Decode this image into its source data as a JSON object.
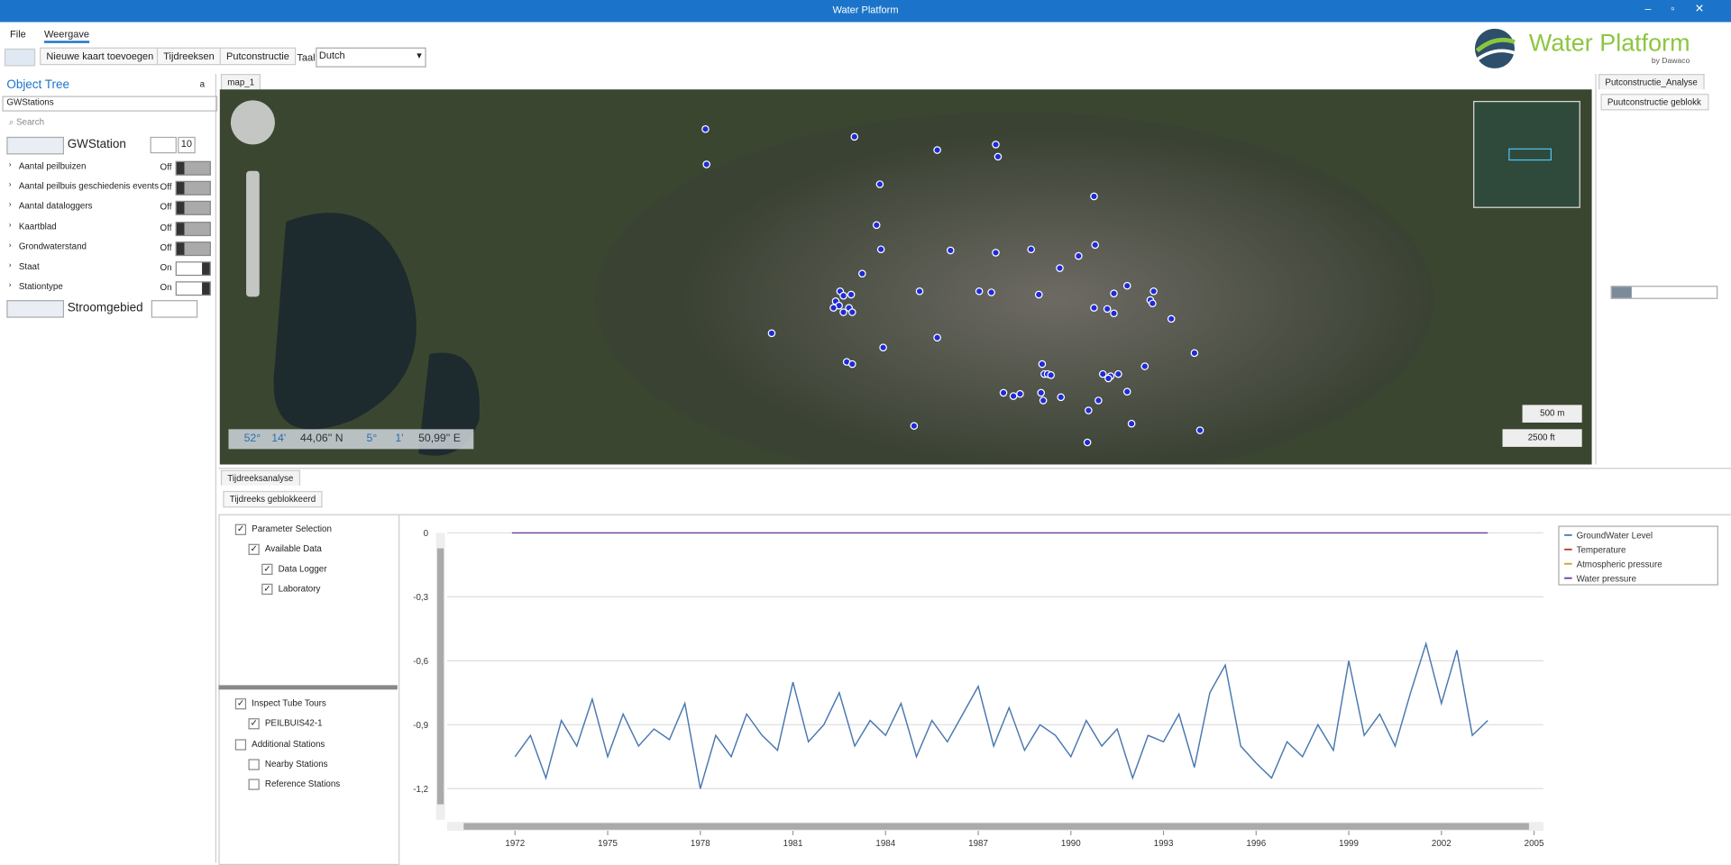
{
  "window": {
    "title": "Water Platform"
  },
  "menu": [
    "File",
    "Weergave"
  ],
  "toolbar": {
    "buttons": [
      "Nieuwe kaart toevoegen",
      "Tijdreeksen",
      "Putconstructie"
    ],
    "language_label": "Taal",
    "language": "Dutch"
  },
  "logo": {
    "title": "Water Platform",
    "subtitle": "by Dawaco"
  },
  "object_tree": {
    "title": "Object Tree",
    "pin": "a",
    "source": "GWStations",
    "search": "Search",
    "group": "GWStation",
    "count": "10",
    "layers": [
      {
        "name": "Aantal peilbuizen",
        "state": "Off"
      },
      {
        "name": "Aantal peilbuis geschiedenis events",
        "state": "Off"
      },
      {
        "name": "Aantal dataloggers",
        "state": "Off"
      },
      {
        "name": "Kaartblad",
        "state": "Off"
      },
      {
        "name": "Grondwaterstand",
        "state": "Off"
      },
      {
        "name": "Staat",
        "state": "On"
      },
      {
        "name": "Stationtype",
        "state": "On"
      }
    ],
    "group2": "Stroomgebied"
  },
  "map": {
    "tab": "map_1",
    "coordinates": [
      "52°",
      "14'",
      "44,06'' N",
      "5°",
      "1'",
      "50,99'' E"
    ],
    "scales": [
      "500 m",
      "2500 ft"
    ]
  },
  "side_panel": {
    "tab": "Putconstructie_Analyse",
    "button": "Puutconstructie geblokk"
  },
  "analysis": {
    "tab": "Tijdreeksanalyse",
    "button": "Tijdreeks geblokkeerd",
    "tree": [
      "Parameter Selection",
      "Available Data",
      "Data Logger",
      "Laboratory"
    ],
    "stations": [
      "Inspect Tube Tours",
      "PEILBUIS42-1",
      "Additional Stations",
      "Nearby Stations",
      "Reference Stations"
    ]
  },
  "chart_data": {
    "type": "line",
    "series": [
      {
        "name": "GroundWater Level",
        "color": "#4a78b0",
        "x": [
          1972,
          1972.5,
          1973,
          1973.5,
          1974,
          1974.5,
          1975,
          1975.5,
          1976,
          1976.5,
          1977,
          1977.5,
          1978,
          1978.5,
          1979,
          1979.5,
          1980,
          1980.5,
          1981,
          1981.5,
          1982,
          1982.5,
          1983,
          1983.5,
          1984,
          1984.5,
          1985,
          1985.5,
          1986,
          1986.5,
          1987,
          1987.5,
          1988,
          1988.5,
          1989,
          1989.5,
          1990,
          1990.5,
          1991,
          1991.5,
          1992,
          1992.5,
          1993,
          1993.5,
          1994,
          1994.5,
          1995,
          1995.5,
          1996,
          1996.5,
          1997,
          1997.5,
          1998,
          1998.5,
          1999,
          1999.5,
          2000,
          2000.5,
          2001,
          2001.5,
          2002,
          2002.5,
          2003,
          2003.5
        ],
        "values": [
          -1.05,
          -0.95,
          -1.15,
          -0.88,
          -1.0,
          -0.78,
          -1.05,
          -0.85,
          -1.0,
          -0.92,
          -0.97,
          -0.8,
          -1.2,
          -0.95,
          -1.05,
          -0.85,
          -0.95,
          -1.02,
          -0.7,
          -0.98,
          -0.9,
          -0.75,
          -1.0,
          -0.88,
          -0.95,
          -0.8,
          -1.05,
          -0.88,
          -0.98,
          -0.85,
          -0.72,
          -1.0,
          -0.82,
          -1.02,
          -0.9,
          -0.95,
          -1.05,
          -0.88,
          -1.0,
          -0.92,
          -1.15,
          -0.95,
          -0.98,
          -0.85,
          -1.1,
          -0.75,
          -0.62,
          -1.0,
          -1.08,
          -1.15,
          -0.98,
          -1.05,
          -0.9,
          -1.02,
          -0.6,
          -0.95,
          -0.85,
          -1.0,
          -0.75,
          -0.52,
          -0.8,
          -0.55,
          -0.95,
          -0.88
        ]
      },
      {
        "name": "Temperature",
        "color": "#c0392b",
        "x": [],
        "values": []
      },
      {
        "name": "Atmospheric pressure",
        "color": "#c9a227",
        "x": [],
        "values": []
      },
      {
        "name": "Water pressure",
        "color": "#6a3d9a",
        "x": [
          1971.9,
          2003.5
        ],
        "values": [
          0,
          0
        ]
      }
    ],
    "xlim": [
      1969.8,
      2005.3
    ],
    "ylim": [
      -1.32,
      0
    ],
    "xticks": [
      1972,
      1975,
      1978,
      1981,
      1984,
      1987,
      1990,
      1993,
      1996,
      1999,
      2002,
      2005
    ],
    "yticks": [
      0,
      {
        "value": -0.3,
        "label": "-0,3"
      },
      {
        "value": -0.6,
        "label": "-0,6"
      },
      {
        "value": -0.9,
        "label": "-0,9"
      },
      {
        "value": -1.2,
        "label": "-1,2"
      }
    ],
    "grid": true,
    "legend": "top-right"
  }
}
